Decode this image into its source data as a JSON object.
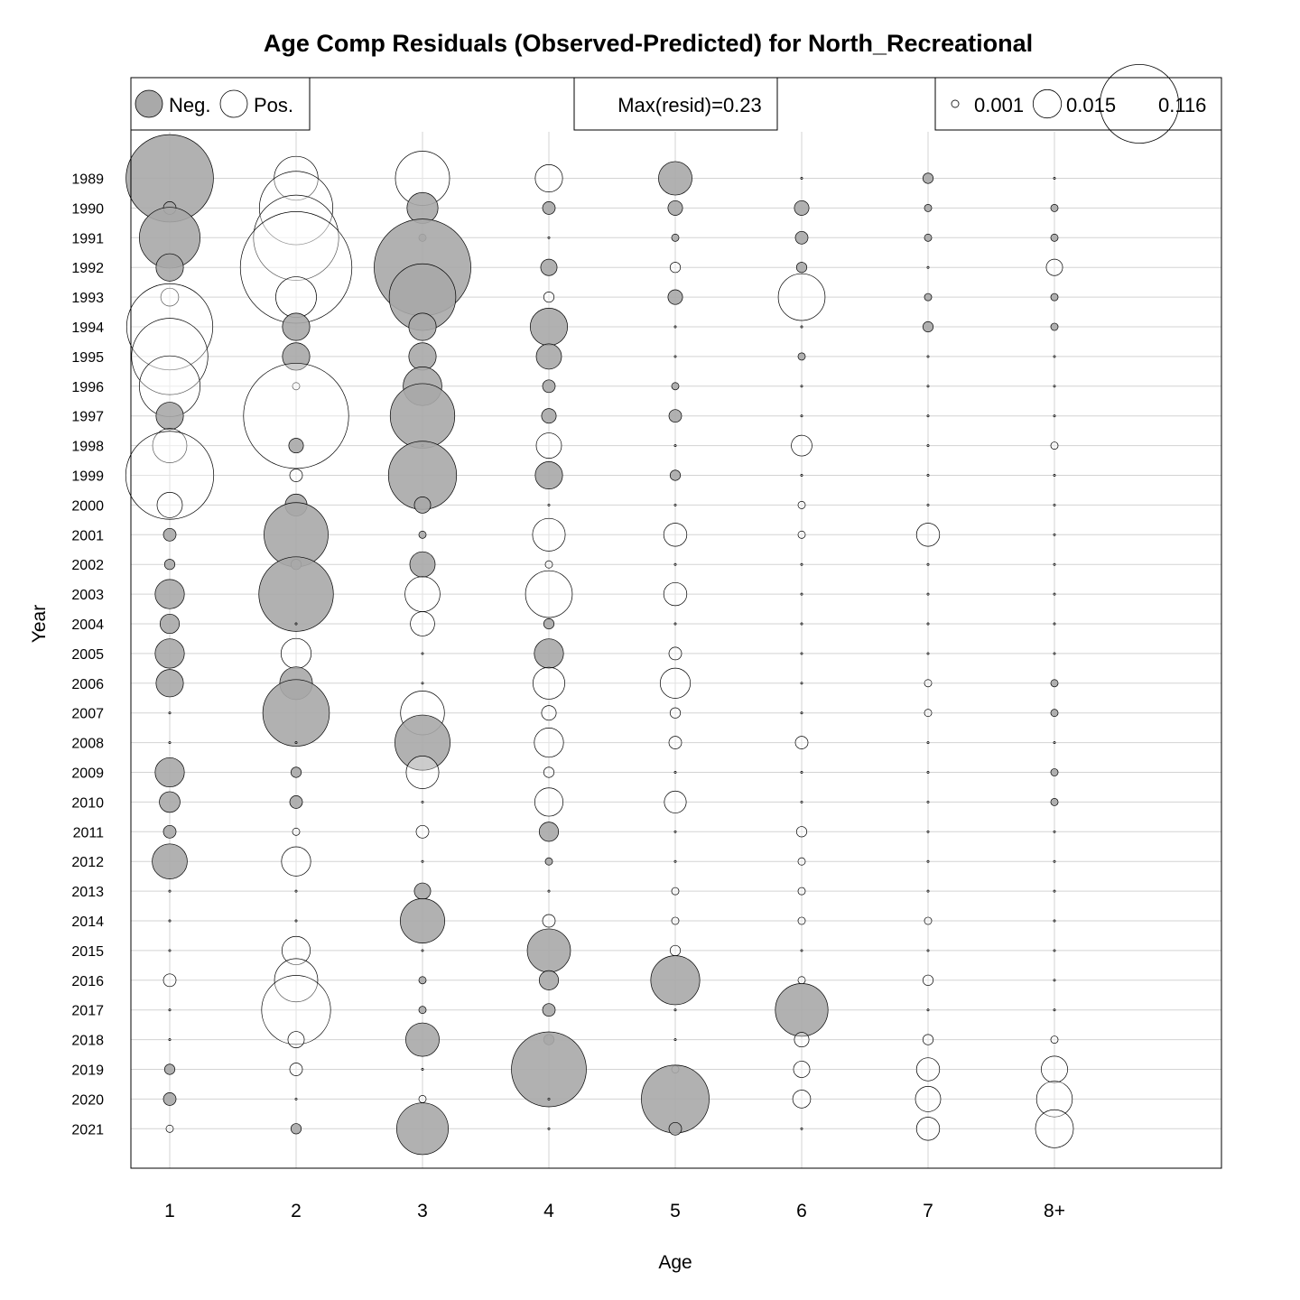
{
  "chart_data": {
    "type": "bubble",
    "title": "Age Comp Residuals (Observed-Predicted) for North_Recreational",
    "xlabel": "Age",
    "ylabel": "Year",
    "categories": [
      "1",
      "2",
      "3",
      "4",
      "5",
      "6",
      "7",
      "8+"
    ],
    "years": [
      "1989",
      "1990",
      "1991",
      "1992",
      "1993",
      "1994",
      "1995",
      "1996",
      "1997",
      "1998",
      "1999",
      "2000",
      "2001",
      "2002",
      "2003",
      "2004",
      "2005",
      "2006",
      "2007",
      "2008",
      "2009",
      "2010",
      "2011",
      "2012",
      "2013",
      "2014",
      "2015",
      "2016",
      "2017",
      "2018",
      "2019",
      "2020",
      "2021"
    ],
    "legend": {
      "sign_labels": [
        "Neg.",
        "Pos."
      ],
      "max_label": "Max(resid)=0.23",
      "size_values": [
        0.001,
        0.015,
        0.116
      ],
      "size_labels": [
        "0.001",
        "0.015",
        "0.116"
      ]
    },
    "colors": {
      "negative": "#a9a9a9",
      "positive": "#ffffff",
      "edge": "#000000",
      "grid": "#d3d3d3"
    },
    "residuals": [
      [
        -0.143,
        0.036,
        0.055,
        0.014,
        -0.021,
        0.0,
        -0.002,
        0.0
      ],
      [
        -0.003,
        0.101,
        -0.018,
        -0.003,
        -0.004,
        -0.004,
        -0.001,
        -0.001
      ],
      [
        -0.069,
        0.136,
        -0.001,
        0.0,
        -0.001,
        -0.003,
        -0.001,
        -0.001
      ],
      [
        -0.014,
        0.233,
        -0.175,
        -0.005,
        0.002,
        -0.002,
        0.0,
        0.005
      ],
      [
        0.006,
        0.031,
        -0.083,
        0.002,
        -0.004,
        0.041,
        -0.001,
        -0.001
      ],
      [
        0.139,
        -0.014,
        -0.014,
        -0.026,
        0.0,
        0.0,
        -0.002,
        -0.001
      ],
      [
        0.109,
        -0.014,
        -0.014,
        -0.012,
        0.0,
        -0.001,
        0.0,
        0.0
      ],
      [
        0.069,
        0.001,
        -0.028,
        -0.003,
        -0.001,
        0.0,
        0.0,
        0.0
      ],
      [
        -0.014,
        0.207,
        -0.078,
        -0.004,
        -0.003,
        0.0,
        0.0,
        0.0
      ],
      [
        0.022,
        -0.004,
        0.0,
        0.012,
        0.0,
        0.008,
        0.0,
        0.001
      ],
      [
        0.145,
        0.003,
        -0.087,
        -0.014,
        -0.002,
        0.0,
        0.0,
        0.0
      ],
      [
        0.012,
        -0.009,
        -0.005,
        0.0,
        0.0,
        0.001,
        0.0,
        0.0
      ],
      [
        -0.003,
        -0.077,
        -0.001,
        0.02,
        0.01,
        0.001,
        0.01,
        0.0
      ],
      [
        -0.002,
        -0.002,
        -0.012,
        0.001,
        0.0,
        0.0,
        0.0,
        0.0
      ],
      [
        -0.016,
        -0.104,
        0.023,
        0.041,
        0.01,
        0.0,
        0.0,
        0.0
      ],
      [
        -0.007,
        0.0,
        0.011,
        -0.002,
        0.0,
        0.0,
        0.0,
        0.0
      ],
      [
        -0.016,
        0.017,
        0.0,
        -0.016,
        0.003,
        0.0,
        0.0,
        0.0
      ],
      [
        -0.014,
        -0.02,
        0.0,
        0.019,
        0.017,
        0.0,
        0.001,
        -0.001
      ],
      [
        0.0,
        -0.083,
        0.036,
        0.004,
        0.002,
        0.0,
        0.001,
        -0.001
      ],
      [
        0.0,
        0.0,
        -0.057,
        0.016,
        0.003,
        0.003,
        0.0,
        0.0
      ],
      [
        -0.016,
        -0.002,
        0.02,
        0.002,
        0.0,
        0.0,
        0.0,
        -0.001
      ],
      [
        -0.008,
        -0.003,
        0.0,
        0.015,
        0.009,
        0.0,
        0.0,
        -0.001
      ],
      [
        -0.003,
        0.001,
        0.003,
        -0.007,
        0.0,
        0.002,
        0.0,
        0.0
      ],
      [
        -0.023,
        0.016,
        0.0,
        -0.001,
        0.0,
        0.001,
        0.0,
        0.0
      ],
      [
        0.0,
        0.0,
        -0.005,
        0.0,
        0.001,
        0.001,
        0.0,
        0.0
      ],
      [
        0.0,
        0.0,
        -0.037,
        0.003,
        0.001,
        0.001,
        0.001,
        0.0
      ],
      [
        0.0,
        0.015,
        0.0,
        -0.035,
        0.002,
        0.0,
        0.0,
        0.0
      ],
      [
        0.003,
        0.035,
        -0.001,
        -0.007,
        -0.045,
        0.001,
        0.002,
        0.0
      ],
      [
        0.0,
        0.089,
        -0.001,
        -0.003,
        0.0,
        -0.052,
        0.0,
        0.0
      ],
      [
        0.0,
        0.005,
        -0.021,
        -0.002,
        0.0,
        0.004,
        0.002,
        0.001
      ],
      [
        -0.002,
        0.003,
        0.0,
        -0.105,
        0.001,
        0.005,
        0.01,
        0.013
      ],
      [
        -0.003,
        0.0,
        0.001,
        0.0,
        -0.086,
        0.006,
        0.012,
        0.024
      ],
      [
        0.001,
        -0.002,
        -0.05,
        0.0,
        -0.003,
        0.0,
        0.01,
        0.027
      ]
    ]
  }
}
